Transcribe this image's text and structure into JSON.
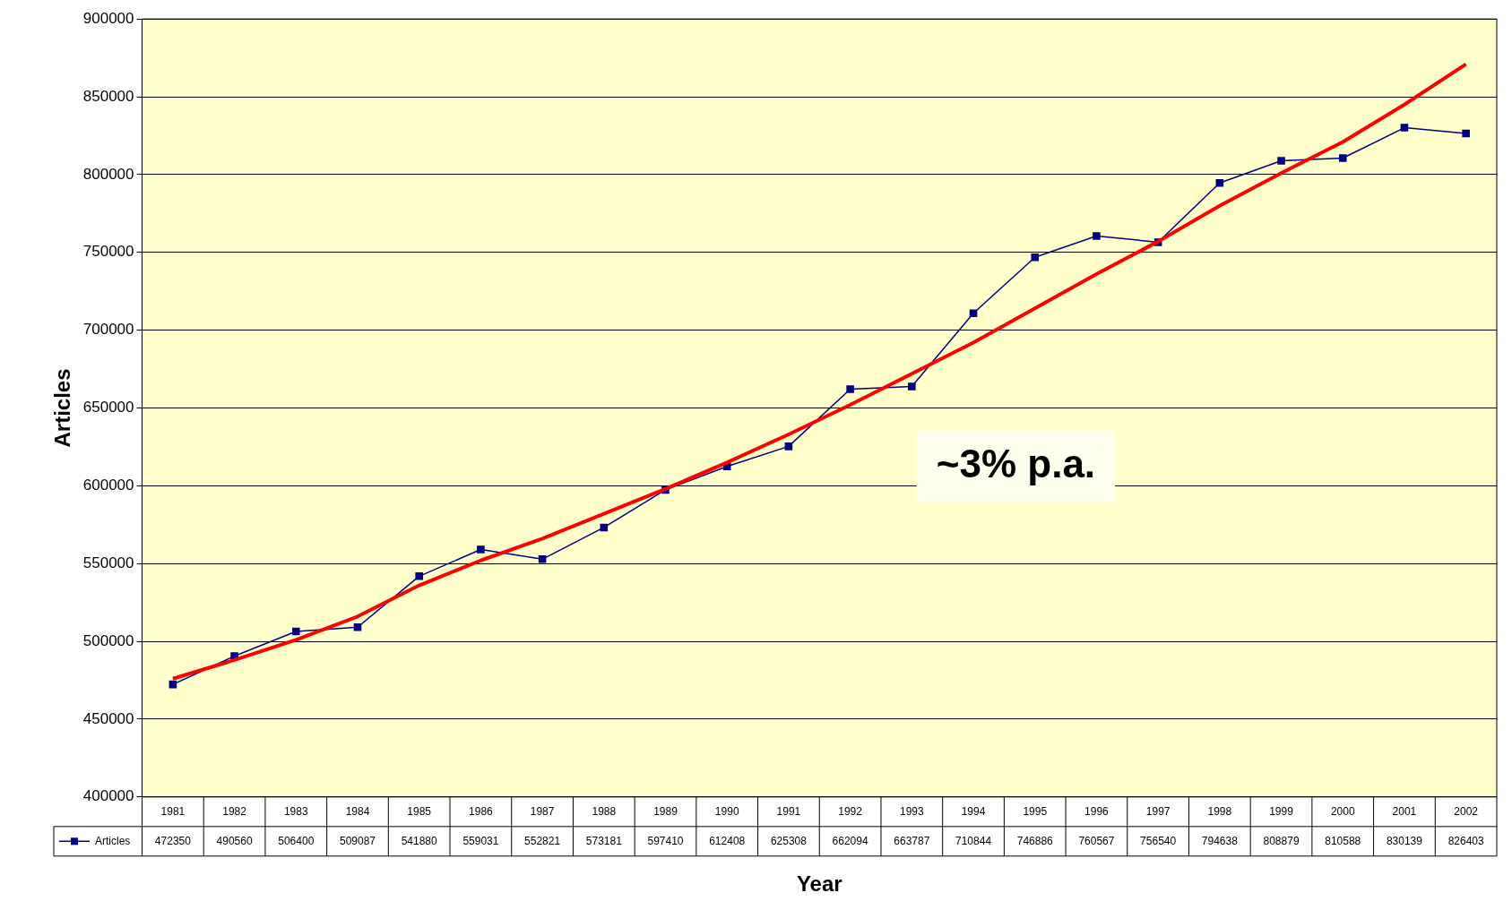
{
  "chart_data": {
    "type": "line",
    "xlabel": "Year",
    "ylabel": "Articles",
    "categories": [
      "1981",
      "1982",
      "1983",
      "1984",
      "1985",
      "1986",
      "1987",
      "1988",
      "1989",
      "1990",
      "1991",
      "1992",
      "1993",
      "1994",
      "1995",
      "1996",
      "1997",
      "1998",
      "1999",
      "2000",
      "2001",
      "2002"
    ],
    "series": [
      {
        "name": "Articles",
        "color": "#000080",
        "marker": "square",
        "values": [
          472350,
          490560,
          506400,
          509087,
          541880,
          559031,
          552821,
          573181,
          597410,
          612408,
          625308,
          662094,
          663787,
          710844,
          746886,
          760567,
          756540,
          794638,
          808879,
          810588,
          830139,
          826403
        ],
        "value_labels": [
          "472350",
          "490560",
          "506400",
          "509087",
          "541880",
          "559031",
          "552821",
          "573181",
          "597410",
          "612408",
          "625308",
          "662094",
          "663787",
          "710844",
          "746886",
          "760567",
          "756540",
          "794638",
          "808879",
          "810588",
          "830139",
          "826403"
        ]
      },
      {
        "type": "line",
        "color": "#ff0000",
        "marker": "none",
        "values": [
          476000,
          488000,
          501000,
          516000,
          536000,
          552000,
          566000,
          582000,
          598000,
          615000,
          633000,
          652000,
          672000,
          692000,
          714000,
          736000,
          757000,
          780000,
          801000,
          821000,
          845000,
          871000
        ]
      }
    ],
    "ylim": [
      400000,
      900000
    ],
    "yticks": [
      400000,
      450000,
      500000,
      550000,
      600000,
      650000,
      700000,
      750000,
      800000,
      850000,
      900000
    ],
    "grid": "y",
    "legend": "bottom left",
    "annotations": [
      "~3% p.a."
    ]
  }
}
